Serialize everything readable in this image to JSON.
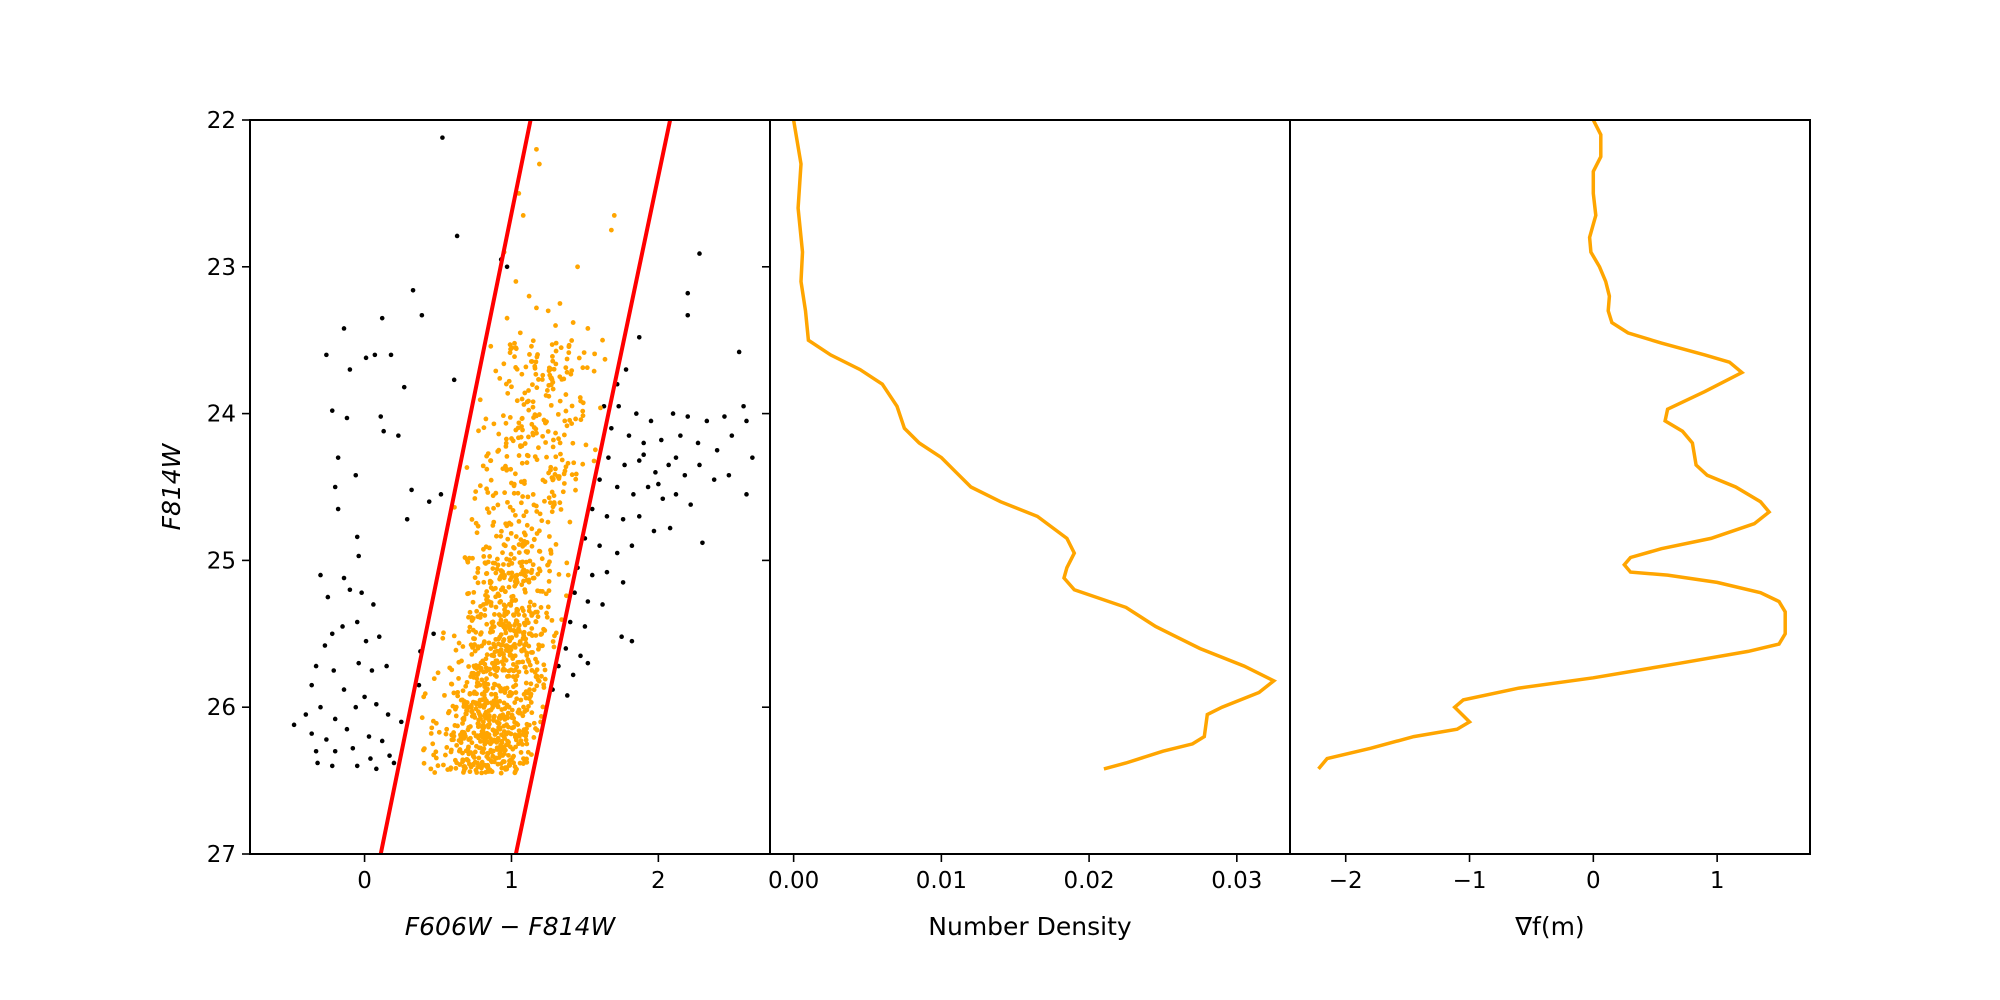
{
  "colors": {
    "selected": "#ffa500",
    "field": "#000000",
    "boundary": "#ff0000",
    "curve": "#ffa500"
  },
  "chart_data": [
    {
      "type": "scatter",
      "panel": "color-magnitude diagram",
      "xlabel": "F606W − F814W",
      "ylabel": "F814W",
      "xlim": [
        -0.78,
        2.76
      ],
      "ylim": [
        27,
        22
      ],
      "y_inverted": true,
      "xticks": [
        0,
        1,
        2
      ],
      "yticks": [
        22,
        23,
        24,
        25,
        26,
        27
      ],
      "selection_lines": [
        {
          "x": [
            0.11,
            1.13
          ],
          "y": [
            27,
            22
          ]
        },
        {
          "x": [
            1.03,
            2.08
          ],
          "y": [
            27,
            22
          ]
        }
      ],
      "field_points": [
        [
          0.53,
          22.12
        ],
        [
          0.63,
          22.79
        ],
        [
          0.93,
          22.95
        ],
        [
          0.97,
          23.0
        ],
        [
          2.28,
          22.91
        ],
        [
          2.2,
          23.18
        ],
        [
          2.2,
          23.33
        ],
        [
          0.33,
          23.16
        ],
        [
          0.39,
          23.33
        ],
        [
          0.12,
          23.35
        ],
        [
          -0.14,
          23.42
        ],
        [
          -0.26,
          23.6
        ],
        [
          -0.1,
          23.7
        ],
        [
          0.01,
          23.62
        ],
        [
          0.07,
          23.6
        ],
        [
          0.18,
          23.6
        ],
        [
          0.27,
          23.82
        ],
        [
          0.61,
          23.77
        ],
        [
          1.87,
          23.48
        ],
        [
          2.55,
          23.58
        ],
        [
          -0.22,
          23.98
        ],
        [
          -0.12,
          24.03
        ],
        [
          0.11,
          24.02
        ],
        [
          0.13,
          24.12
        ],
        [
          0.23,
          24.15
        ],
        [
          -0.18,
          24.3
        ],
        [
          -0.06,
          24.42
        ],
        [
          -0.2,
          24.5
        ],
        [
          0.32,
          24.52
        ],
        [
          0.44,
          24.6
        ],
        [
          0.52,
          24.55
        ],
        [
          0.29,
          24.72
        ],
        [
          -0.18,
          24.65
        ],
        [
          -0.05,
          24.84
        ],
        [
          -0.04,
          24.97
        ],
        [
          -0.3,
          25.1
        ],
        [
          -0.14,
          25.12
        ],
        [
          -0.1,
          25.2
        ],
        [
          -0.25,
          25.25
        ],
        [
          -0.02,
          25.22
        ],
        [
          0.06,
          25.3
        ],
        [
          -0.22,
          25.5
        ],
        [
          -0.15,
          25.45
        ],
        [
          -0.05,
          25.42
        ],
        [
          0.01,
          25.55
        ],
        [
          0.1,
          25.52
        ],
        [
          -0.27,
          25.58
        ],
        [
          -0.33,
          25.72
        ],
        [
          -0.21,
          25.75
        ],
        [
          -0.04,
          25.7
        ],
        [
          0.05,
          25.75
        ],
        [
          0.15,
          25.72
        ],
        [
          -0.36,
          25.85
        ],
        [
          -0.14,
          25.88
        ],
        [
          0.0,
          25.93
        ],
        [
          -0.4,
          26.05
        ],
        [
          -0.3,
          26.0
        ],
        [
          -0.2,
          26.08
        ],
        [
          -0.06,
          26.0
        ],
        [
          0.08,
          25.98
        ],
        [
          0.16,
          26.05
        ],
        [
          -0.48,
          26.12
        ],
        [
          -0.36,
          26.18
        ],
        [
          -0.26,
          26.22
        ],
        [
          -0.12,
          26.15
        ],
        [
          0.03,
          26.2
        ],
        [
          0.12,
          26.23
        ],
        [
          -0.33,
          26.3
        ],
        [
          -0.2,
          26.3
        ],
        [
          -0.08,
          26.28
        ],
        [
          0.04,
          26.35
        ],
        [
          0.17,
          26.33
        ],
        [
          -0.32,
          26.38
        ],
        [
          -0.22,
          26.4
        ],
        [
          -0.05,
          26.4
        ],
        [
          0.08,
          26.42
        ],
        [
          0.2,
          26.38
        ],
        [
          0.37,
          25.85
        ],
        [
          0.47,
          25.5
        ],
        [
          0.38,
          25.62
        ],
        [
          0.25,
          26.1
        ],
        [
          1.73,
          23.95
        ],
        [
          1.85,
          24.0
        ],
        [
          1.95,
          24.05
        ],
        [
          2.1,
          24.0
        ],
        [
          2.2,
          24.02
        ],
        [
          2.33,
          24.05
        ],
        [
          2.45,
          24.02
        ],
        [
          2.58,
          23.95
        ],
        [
          2.6,
          24.05
        ],
        [
          2.64,
          24.3
        ],
        [
          1.68,
          24.1
        ],
        [
          1.8,
          24.15
        ],
        [
          1.9,
          24.2
        ],
        [
          2.02,
          24.18
        ],
        [
          2.15,
          24.15
        ],
        [
          2.27,
          24.2
        ],
        [
          2.4,
          24.25
        ],
        [
          2.5,
          24.15
        ],
        [
          1.66,
          24.3
        ],
        [
          1.77,
          24.35
        ],
        [
          1.87,
          24.32
        ],
        [
          1.98,
          24.4
        ],
        [
          2.07,
          24.35
        ],
        [
          2.18,
          24.42
        ],
        [
          2.28,
          24.35
        ],
        [
          2.38,
          24.45
        ],
        [
          2.48,
          24.42
        ],
        [
          2.6,
          24.55
        ],
        [
          1.6,
          24.45
        ],
        [
          1.72,
          24.5
        ],
        [
          1.83,
          24.55
        ],
        [
          1.93,
          24.5
        ],
        [
          2.03,
          24.58
        ],
        [
          2.12,
          24.55
        ],
        [
          2.22,
          24.62
        ],
        [
          1.55,
          24.65
        ],
        [
          1.65,
          24.7
        ],
        [
          1.76,
          24.72
        ],
        [
          1.87,
          24.7
        ],
        [
          1.97,
          24.8
        ],
        [
          2.08,
          24.78
        ],
        [
          2.3,
          24.88
        ],
        [
          1.5,
          24.85
        ],
        [
          1.6,
          24.9
        ],
        [
          1.72,
          24.95
        ],
        [
          1.82,
          24.9
        ],
        [
          1.45,
          25.05
        ],
        [
          1.55,
          25.1
        ],
        [
          1.65,
          25.08
        ],
        [
          1.76,
          25.15
        ],
        [
          1.43,
          25.22
        ],
        [
          1.52,
          25.28
        ],
        [
          1.62,
          25.3
        ],
        [
          1.4,
          25.42
        ],
        [
          1.5,
          25.45
        ],
        [
          1.75,
          25.52
        ],
        [
          1.82,
          25.55
        ],
        [
          1.37,
          25.6
        ],
        [
          1.47,
          25.65
        ],
        [
          1.32,
          25.72
        ],
        [
          1.42,
          25.78
        ],
        [
          1.52,
          25.7
        ],
        [
          1.28,
          25.88
        ],
        [
          1.38,
          25.92
        ],
        [
          1.72,
          23.8
        ],
        [
          1.63,
          23.95
        ],
        [
          1.78,
          23.7
        ],
        [
          1.9,
          24.28
        ],
        [
          2.0,
          24.48
        ],
        [
          2.12,
          24.3
        ]
      ],
      "selected_points": [
        {
          "ref": "generated: dense main-sequence cloud, lower part",
          "count": 950,
          "x_center": 0.95,
          "y_min": 24.7,
          "y_max": 26.45
        },
        {
          "ref": "generated: sparse upper part",
          "count": 260,
          "x_center": 1.2,
          "y_min": 23.5,
          "y_max": 24.7
        }
      ],
      "selected_points_upper": [
        [
          1.17,
          22.2
        ],
        [
          1.19,
          22.3
        ],
        [
          1.05,
          22.5
        ],
        [
          1.08,
          22.65
        ],
        [
          1.7,
          22.65
        ],
        [
          1.68,
          22.75
        ],
        [
          0.95,
          22.9
        ],
        [
          1.45,
          23.0
        ],
        [
          1.03,
          23.1
        ],
        [
          1.12,
          23.2
        ],
        [
          1.25,
          23.3
        ],
        [
          0.97,
          23.35
        ],
        [
          1.17,
          23.28
        ],
        [
          1.33,
          23.25
        ],
        [
          1.06,
          23.45
        ],
        [
          1.3,
          23.4
        ],
        [
          1.42,
          23.38
        ],
        [
          1.52,
          23.42
        ],
        [
          1.62,
          23.5
        ]
      ]
    },
    {
      "type": "line",
      "panel": "number density",
      "xlabel": "Number Density",
      "ylabel": "",
      "xlim": [
        -0.0016,
        0.0336
      ],
      "ylim": [
        27,
        22
      ],
      "xticks": [
        0.0,
        0.01,
        0.02,
        0.03
      ],
      "xtick_labels": [
        "0.00",
        "0.01",
        "0.02",
        "0.03"
      ],
      "points": [
        [
          0.0,
          22.0
        ],
        [
          0.0005,
          22.3
        ],
        [
          0.0003,
          22.6
        ],
        [
          0.0006,
          22.9
        ],
        [
          0.0005,
          23.1
        ],
        [
          0.0008,
          23.3
        ],
        [
          0.001,
          23.5
        ],
        [
          0.0025,
          23.6
        ],
        [
          0.0045,
          23.7
        ],
        [
          0.006,
          23.8
        ],
        [
          0.007,
          23.95
        ],
        [
          0.0075,
          24.1
        ],
        [
          0.0085,
          24.2
        ],
        [
          0.01,
          24.3
        ],
        [
          0.011,
          24.4
        ],
        [
          0.012,
          24.5
        ],
        [
          0.014,
          24.6
        ],
        [
          0.0165,
          24.7
        ],
        [
          0.0185,
          24.85
        ],
        [
          0.019,
          24.95
        ],
        [
          0.0185,
          25.05
        ],
        [
          0.0183,
          25.12
        ],
        [
          0.019,
          25.2
        ],
        [
          0.0225,
          25.32
        ],
        [
          0.0245,
          25.45
        ],
        [
          0.0275,
          25.6
        ],
        [
          0.0305,
          25.72
        ],
        [
          0.0325,
          25.82
        ],
        [
          0.0315,
          25.9
        ],
        [
          0.029,
          26.0
        ],
        [
          0.028,
          26.05
        ],
        [
          0.0278,
          26.2
        ],
        [
          0.027,
          26.25
        ],
        [
          0.025,
          26.3
        ],
        [
          0.0225,
          26.38
        ],
        [
          0.021,
          26.42
        ]
      ]
    },
    {
      "type": "line",
      "panel": "gradient",
      "xlabel": "∇f(m)",
      "ylabel": "",
      "xlim": [
        -2.45,
        1.75
      ],
      "ylim": [
        27,
        22
      ],
      "xticks": [
        -2,
        -1,
        0,
        1
      ],
      "xtick_labels": [
        "−2",
        "−1",
        "0",
        "1"
      ],
      "points": [
        [
          0.0,
          22.0
        ],
        [
          0.06,
          22.1
        ],
        [
          0.06,
          22.25
        ],
        [
          0.0,
          22.35
        ],
        [
          0.0,
          22.5
        ],
        [
          0.02,
          22.65
        ],
        [
          -0.03,
          22.8
        ],
        [
          -0.02,
          22.9
        ],
        [
          0.05,
          23.0
        ],
        [
          0.1,
          23.1
        ],
        [
          0.13,
          23.2
        ],
        [
          0.12,
          23.3
        ],
        [
          0.15,
          23.38
        ],
        [
          0.28,
          23.45
        ],
        [
          0.55,
          23.52
        ],
        [
          0.9,
          23.6
        ],
        [
          1.1,
          23.65
        ],
        [
          1.2,
          23.72
        ],
        [
          0.9,
          23.85
        ],
        [
          0.6,
          23.97
        ],
        [
          0.58,
          24.05
        ],
        [
          0.72,
          24.12
        ],
        [
          0.8,
          24.2
        ],
        [
          0.83,
          24.35
        ],
        [
          0.92,
          24.42
        ],
        [
          1.15,
          24.5
        ],
        [
          1.35,
          24.6
        ],
        [
          1.42,
          24.67
        ],
        [
          1.3,
          24.75
        ],
        [
          0.95,
          24.85
        ],
        [
          0.55,
          24.92
        ],
        [
          0.3,
          24.98
        ],
        [
          0.25,
          25.03
        ],
        [
          0.3,
          25.08
        ],
        [
          0.6,
          25.1
        ],
        [
          1.0,
          25.15
        ],
        [
          1.35,
          25.22
        ],
        [
          1.5,
          25.28
        ],
        [
          1.55,
          25.35
        ],
        [
          1.55,
          25.5
        ],
        [
          1.5,
          25.57
        ],
        [
          1.25,
          25.62
        ],
        [
          0.7,
          25.7
        ],
        [
          0.0,
          25.8
        ],
        [
          -0.6,
          25.87
        ],
        [
          -1.05,
          25.95
        ],
        [
          -1.12,
          26.0
        ],
        [
          -1.0,
          26.1
        ],
        [
          -1.1,
          26.15
        ],
        [
          -1.45,
          26.2
        ],
        [
          -1.8,
          26.28
        ],
        [
          -2.15,
          26.35
        ],
        [
          -2.22,
          26.42
        ]
      ]
    }
  ]
}
